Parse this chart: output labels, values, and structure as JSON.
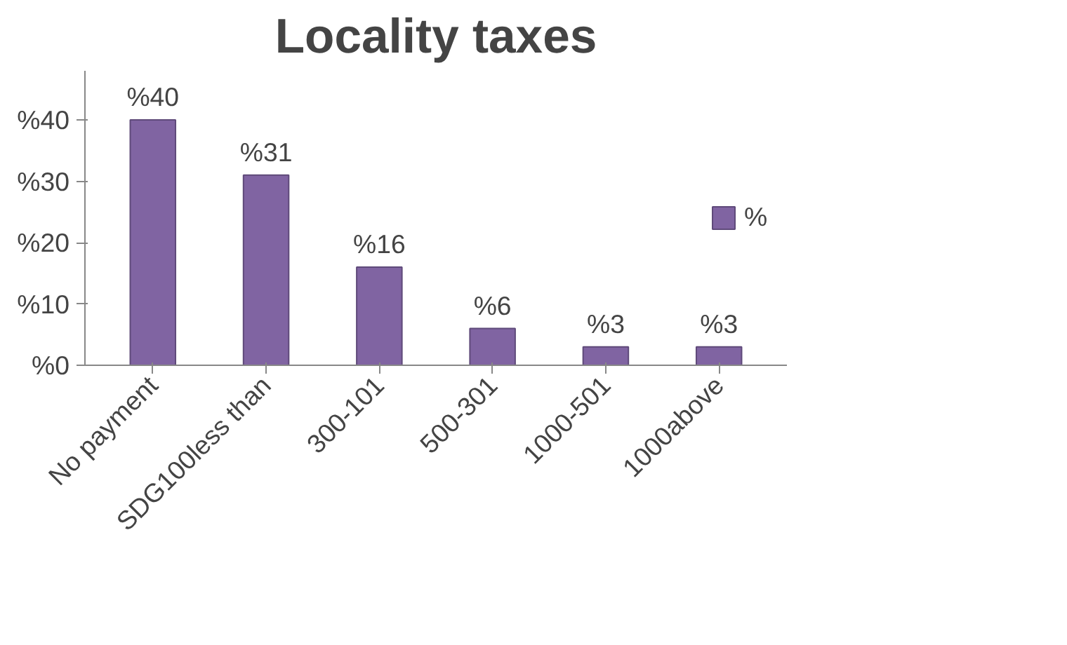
{
  "chart_data": {
    "type": "bar",
    "title": "Locality taxes",
    "categories": [
      "No payment",
      "SDG100less than",
      "300-101",
      "500-301",
      "1000-501",
      "1000above"
    ],
    "series": [
      {
        "name": "%",
        "color": "#8064a2",
        "values": [
          40,
          31,
          16,
          6,
          3,
          3
        ],
        "value_labels": [
          "%40",
          "%31",
          "%16",
          "%6",
          "%3",
          "%3"
        ]
      }
    ],
    "ylim": [
      0,
      48
    ],
    "yticks": [
      {
        "value": 0,
        "label": "%0"
      },
      {
        "value": 10,
        "label": "%10"
      },
      {
        "value": 20,
        "label": "%20"
      },
      {
        "value": 30,
        "label": "%30"
      },
      {
        "value": 40,
        "label": "%40"
      }
    ],
    "grid": false,
    "legend": "right"
  }
}
